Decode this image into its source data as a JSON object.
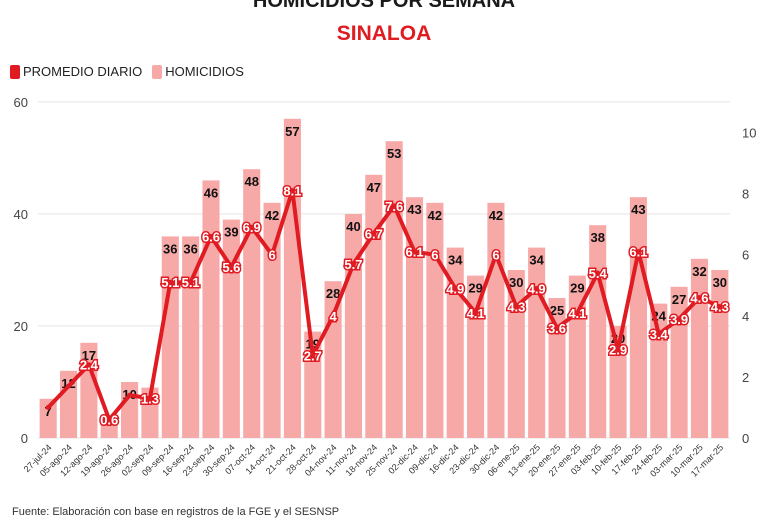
{
  "header": {
    "title": "HOMICIDIOS POR SEMANA",
    "subtitle": "SINALOA"
  },
  "legend": {
    "line_label": "PROMEDIO DIARIO",
    "bar_label": "HOMICIDIOS"
  },
  "footer": {
    "source": "Fuente: Elaboración con base en registros de la FGE y el SESNSP"
  },
  "colors": {
    "line": "#e01b22",
    "bar": "#f7a9a8",
    "text": "#222222",
    "grid": "#e5e5e5"
  },
  "chart_data": {
    "type": "bar",
    "categories": [
      "27-jul-24",
      "05-ago-24",
      "12-ago-24",
      "19-ago-24",
      "26-ago-24",
      "02-sep-24",
      "09-sep-24",
      "16-sep-24",
      "23-sep-24",
      "30-sep-24",
      "07-oct-24",
      "14-oct-24",
      "21-oct-24",
      "28-oct-24",
      "04-nov-24",
      "11-nov-24",
      "18-nov-24",
      "25-nov-24",
      "02-dic-24",
      "09-dic-24",
      "16-dic-24",
      "23-dic-24",
      "30-dic-24",
      "06-ene-25",
      "13-ene-25",
      "20-ene-25",
      "27-ene-25",
      "03-feb-25",
      "10-feb-25",
      "17-feb-25",
      "24-feb-25",
      "03-mar-25",
      "10-mar-25",
      "17-mar-25"
    ],
    "series": [
      {
        "name": "HOMICIDIOS",
        "type": "bar",
        "axis": "left",
        "values": [
          7,
          12,
          17,
          4,
          10,
          9,
          36,
          36,
          46,
          39,
          48,
          42,
          57,
          19,
          28,
          40,
          47,
          53,
          43,
          42,
          34,
          29,
          42,
          30,
          34,
          25,
          29,
          38,
          20,
          43,
          24,
          27,
          32,
          30
        ],
        "labels": [
          "7",
          "12",
          "17",
          "",
          "10",
          "9",
          "36",
          "36",
          "46",
          "39",
          "48",
          "42",
          "57",
          "19",
          "28",
          "40",
          "47",
          "53",
          "43",
          "42",
          "34",
          "29",
          "42",
          "30",
          "34",
          "25",
          "29",
          "38",
          "20",
          "43",
          "24",
          "27",
          "32",
          "30"
        ]
      },
      {
        "name": "PROMEDIO DIARIO",
        "type": "line",
        "axis": "right",
        "values": [
          1,
          1.7,
          2.4,
          0.6,
          1.4,
          1.3,
          5.1,
          5.1,
          6.6,
          5.6,
          6.9,
          6,
          8.1,
          2.7,
          4,
          5.7,
          6.7,
          7.6,
          6.1,
          6,
          4.9,
          4.1,
          6,
          4.3,
          4.9,
          3.6,
          4.1,
          5.4,
          2.9,
          6.1,
          3.4,
          3.9,
          4.6,
          4.3
        ],
        "labels": [
          "",
          "",
          "2.4",
          "0.6",
          "",
          "1.3",
          "5.1",
          "5.1",
          "6.6",
          "5.6",
          "6.9",
          "6",
          "8.1",
          "2.7",
          "4",
          "5.7",
          "6.7",
          "7.6",
          "6.1",
          "6",
          "4.9",
          "4.1",
          "6",
          "4.3",
          "4.9",
          "3.6",
          "4.1",
          "5.4",
          "2.9",
          "6.1",
          "3.4",
          "3.9",
          "4.6",
          "4.3"
        ]
      }
    ],
    "y_left": {
      "min": 0,
      "max": 60,
      "ticks": [
        0,
        20,
        40,
        60
      ]
    },
    "y_right": {
      "min": 0,
      "max": 11,
      "ticks": [
        0,
        2,
        4,
        6,
        8,
        10
      ]
    },
    "grid": true,
    "legend_position": "top-left"
  }
}
